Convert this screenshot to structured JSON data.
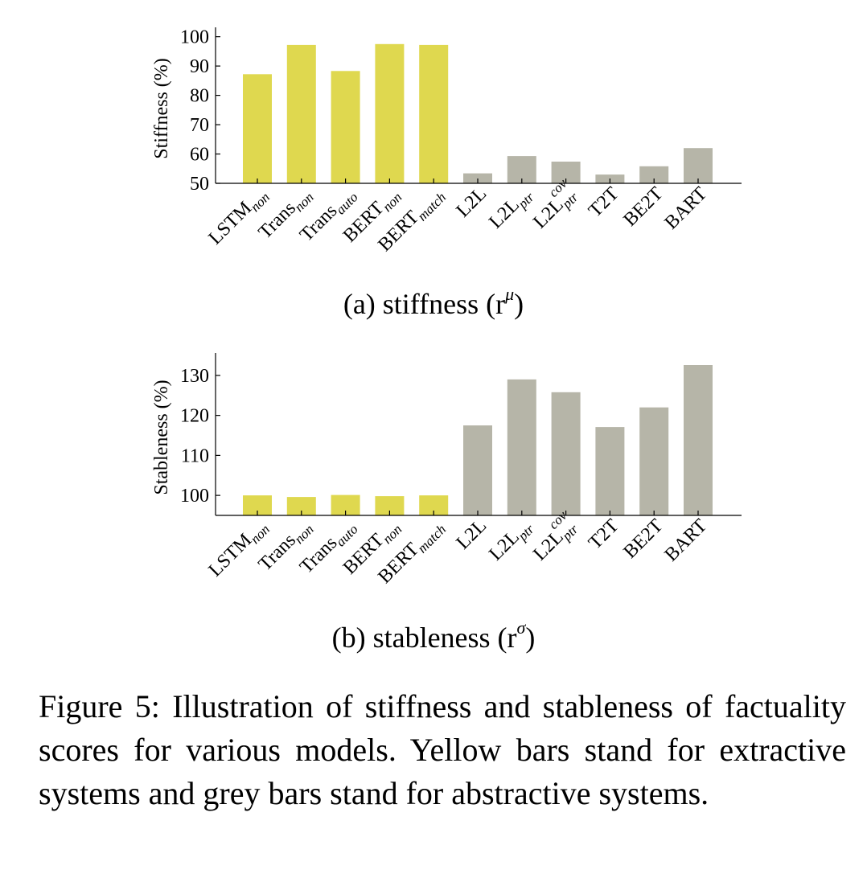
{
  "colors": {
    "extractive": "#dfd84f",
    "abstractive": "#b6b5a8",
    "axis": "#000000"
  },
  "chart_data": [
    {
      "type": "bar",
      "ylabel": "Stiffness (%)",
      "ylim": [
        50,
        101
      ],
      "yticks": [
        50,
        60,
        70,
        80,
        90,
        100
      ],
      "grid": false,
      "categories": [
        {
          "base": "LSTM",
          "sub": "non",
          "sup": ""
        },
        {
          "base": "Trans",
          "sub": "non",
          "sup": ""
        },
        {
          "base": "Trans",
          "sub": "auto",
          "sup": ""
        },
        {
          "base": "BERT",
          "sub": "non",
          "sup": ""
        },
        {
          "base": "BERT",
          "sub": "match",
          "sup": ""
        },
        {
          "base": "L2L",
          "sub": "",
          "sup": ""
        },
        {
          "base": "L2L",
          "sub": "ptr",
          "sup": ""
        },
        {
          "base": "L2L",
          "sub": "ptr",
          "sup": "cov"
        },
        {
          "base": "T2T",
          "sub": "",
          "sup": ""
        },
        {
          "base": "BE2T",
          "sub": "",
          "sup": ""
        },
        {
          "base": "BART",
          "sub": "",
          "sup": ""
        }
      ],
      "values": [
        87.2,
        97.2,
        88.3,
        97.5,
        97.2,
        53.4,
        59.3,
        57.4,
        53.0,
        55.8,
        62.0
      ],
      "groups": [
        "extractive",
        "extractive",
        "extractive",
        "extractive",
        "extractive",
        "abstractive",
        "abstractive",
        "abstractive",
        "abstractive",
        "abstractive",
        "abstractive"
      ]
    },
    {
      "type": "bar",
      "ylabel": "Stableness (%)",
      "ylim": [
        95,
        134
      ],
      "yticks": [
        100,
        110,
        120,
        130
      ],
      "grid": false,
      "categories": [
        {
          "base": "LSTM",
          "sub": "non",
          "sup": ""
        },
        {
          "base": "Trans",
          "sub": "non",
          "sup": ""
        },
        {
          "base": "Trans",
          "sub": "auto",
          "sup": ""
        },
        {
          "base": "BERT",
          "sub": "non",
          "sup": ""
        },
        {
          "base": "BERT",
          "sub": "match",
          "sup": ""
        },
        {
          "base": "L2L",
          "sub": "",
          "sup": ""
        },
        {
          "base": "L2L",
          "sub": "ptr",
          "sup": ""
        },
        {
          "base": "L2L",
          "sub": "ptr",
          "sup": "cov"
        },
        {
          "base": "T2T",
          "sub": "",
          "sup": ""
        },
        {
          "base": "BE2T",
          "sub": "",
          "sup": ""
        },
        {
          "base": "BART",
          "sub": "",
          "sup": ""
        }
      ],
      "values": [
        100.0,
        99.6,
        100.1,
        99.8,
        100.0,
        117.5,
        129.0,
        125.8,
        117.1,
        122.0,
        132.6
      ],
      "groups": [
        "extractive",
        "extractive",
        "extractive",
        "extractive",
        "extractive",
        "abstractive",
        "abstractive",
        "abstractive",
        "abstractive",
        "abstractive",
        "abstractive"
      ]
    }
  ],
  "subcaptions": {
    "a": {
      "prefix": "(a) stiffness (r",
      "sup": "μ",
      "suffix": ")"
    },
    "b": {
      "prefix": "(b) stableness (r",
      "sup": "σ",
      "suffix": ")"
    }
  },
  "caption": "Figure 5: Illustration of stiffness and stableness of factuality scores for various models. Yellow bars stand for extractive systems and grey bars stand for abstractive systems."
}
